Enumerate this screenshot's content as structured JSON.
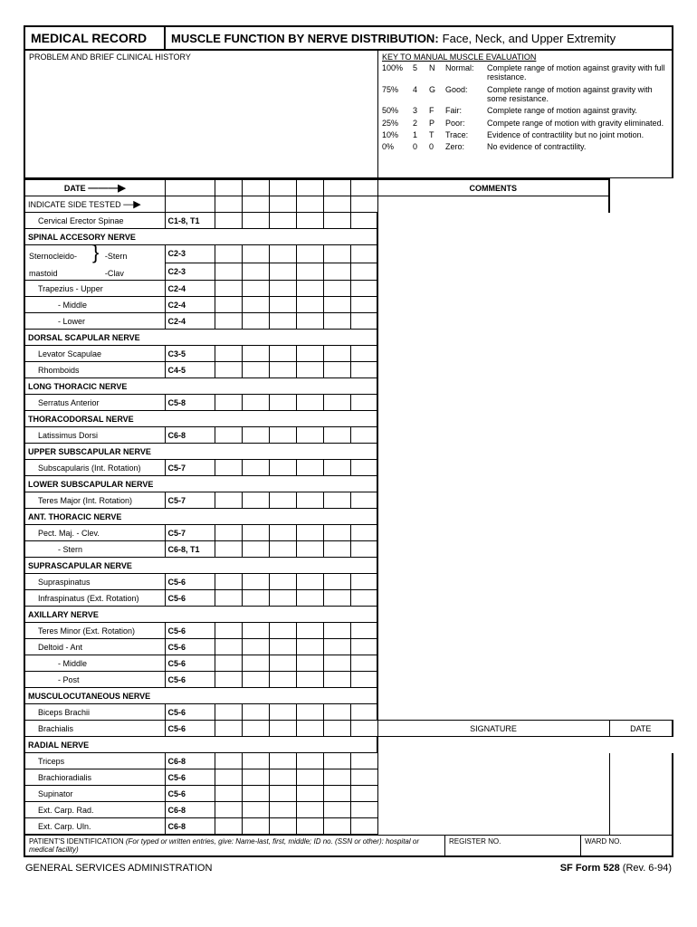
{
  "header": {
    "left": "MEDICAL RECORD",
    "right_bold": "MUSCLE FUNCTION BY NERVE DISTRIBUTION:",
    "right_rest": " Face, Neck, and Upper Extremity"
  },
  "problem_label": "PROBLEM AND BRIEF CLINICAL HISTORY",
  "key": {
    "title": "KEY TO MANUAL MUSCLE EVALUATION",
    "rows": [
      {
        "p": "100%",
        "n": "5",
        "l": "N",
        "g": "Normal:",
        "d": "Complete range of motion against gravity with full resistance."
      },
      {
        "p": "75%",
        "n": "4",
        "l": "G",
        "g": "Good:",
        "d": "Complete range of motion against gravity with some resistance."
      },
      {
        "p": "50%",
        "n": "3",
        "l": "F",
        "g": "Fair:",
        "d": "Complete range of motion against gravity."
      },
      {
        "p": "25%",
        "n": "2",
        "l": "P",
        "g": "Poor:",
        "d": "Compete range of motion with gravity eliminated."
      },
      {
        "p": "10%",
        "n": "1",
        "l": "T",
        "g": "Trace:",
        "d": "Evidence of contractility but no joint motion."
      },
      {
        "p": "0%",
        "n": "0",
        "l": "0",
        "g": "Zero:",
        "d": "No evidence of contractility."
      }
    ]
  },
  "date_label": "DATE",
  "comments_label": "COMMENTS",
  "indicate_label": "INDICATE SIDE TESTED",
  "signature_label": "SIGNATURE",
  "sig_date_label": "DATE",
  "rows": [
    {
      "type": "muscle",
      "name": "Cervical Erector Spinae",
      "seg": "C1-8, T1",
      "indent": 1
    },
    {
      "type": "nerve",
      "name": "SPINAL ACCESORY NERVE"
    },
    {
      "type": "sterno_top",
      "name": "Sternocleido-",
      "sub": "-Stern",
      "seg": "C2-3"
    },
    {
      "type": "sterno_bot",
      "name": "mastoid",
      "sub": "-Clav",
      "seg": "C2-3"
    },
    {
      "type": "muscle",
      "name": "Trapezius - Upper",
      "seg": "C2-4",
      "indent": 1
    },
    {
      "type": "muscle",
      "name": "- Middle",
      "seg": "C2-4",
      "indent": 2
    },
    {
      "type": "muscle",
      "name": "- Lower",
      "seg": "C2-4",
      "indent": 2
    },
    {
      "type": "nerve",
      "name": "DORSAL SCAPULAR NERVE"
    },
    {
      "type": "muscle",
      "name": "Levator Scapulae",
      "seg": "C3-5",
      "indent": 1
    },
    {
      "type": "muscle",
      "name": "Rhomboids",
      "seg": "C4-5",
      "indent": 1
    },
    {
      "type": "nerve",
      "name": "LONG THORACIC NERVE"
    },
    {
      "type": "muscle",
      "name": "Serratus Anterior",
      "seg": "C5-8",
      "indent": 1
    },
    {
      "type": "nerve",
      "name": "THORACODORSAL NERVE"
    },
    {
      "type": "muscle",
      "name": "Latissimus Dorsi",
      "seg": "C6-8",
      "indent": 1
    },
    {
      "type": "nerve",
      "name": "UPPER SUBSCAPULAR NERVE"
    },
    {
      "type": "muscle",
      "name": "Subscapularis (Int. Rotation)",
      "seg": "C5-7",
      "indent": 1
    },
    {
      "type": "nerve",
      "name": "LOWER SUBSCAPULAR NERVE"
    },
    {
      "type": "muscle",
      "name": "Teres Major (Int. Rotation)",
      "seg": "C5-7",
      "indent": 1
    },
    {
      "type": "nerve",
      "name": "ANT. THORACIC NERVE"
    },
    {
      "type": "muscle",
      "name": "Pect. Maj. - Clev.",
      "seg": "C5-7",
      "indent": 1
    },
    {
      "type": "muscle",
      "name": "- Stern",
      "seg": "C6-8, T1",
      "indent": 2
    },
    {
      "type": "nerve",
      "name": "SUPRASCAPULAR NERVE"
    },
    {
      "type": "muscle",
      "name": "Supraspinatus",
      "seg": "C5-6",
      "indent": 1
    },
    {
      "type": "muscle",
      "name": "Infraspinatus (Ext. Rotation)",
      "seg": "C5-6",
      "indent": 1
    },
    {
      "type": "nerve",
      "name": "AXILLARY NERVE"
    },
    {
      "type": "muscle",
      "name": "Teres Minor (Ext. Rotation)",
      "seg": "C5-6",
      "indent": 1
    },
    {
      "type": "muscle",
      "name": "Deltoid - Ant",
      "seg": "C5-6",
      "indent": 1
    },
    {
      "type": "muscle",
      "name": "- Middle",
      "seg": "C5-6",
      "indent": 2
    },
    {
      "type": "muscle",
      "name": "- Post",
      "seg": "C5-6",
      "indent": 2
    },
    {
      "type": "nerve",
      "name": "MUSCULOCUTANEOUS NERVE"
    },
    {
      "type": "muscle",
      "name": "Biceps Brachii",
      "seg": "C5-6",
      "indent": 1
    },
    {
      "type": "muscle_sig",
      "name": "Brachialis",
      "seg": "C5-6",
      "indent": 1
    },
    {
      "type": "nerve",
      "name": "RADIAL NERVE"
    },
    {
      "type": "muscle",
      "name": "Triceps",
      "seg": "C6-8",
      "indent": 1
    },
    {
      "type": "muscle",
      "name": "Brachioradialis",
      "seg": "C5-6",
      "indent": 1
    },
    {
      "type": "muscle",
      "name": "Supinator",
      "seg": "C5-6",
      "indent": 1
    },
    {
      "type": "muscle",
      "name": "Ext. Carp. Rad.",
      "seg": "C6-8",
      "indent": 1
    },
    {
      "type": "muscle",
      "name": "Ext. Carp. Uln.",
      "seg": "C6-8",
      "indent": 1
    }
  ],
  "footer": {
    "pid_label": "PATIENT'S IDENTIFICATION",
    "pid_note": " (For typed or written entries, give: Name-last, first, middle; ID no. (SSN or other): hospital or medical facility)",
    "reg": "REGISTER NO.",
    "ward": "WARD NO."
  },
  "bottom": {
    "left": "GENERAL SERVICES ADMINISTRATION",
    "right_bold": "SF Form 528",
    "right_rest": " (Rev. 6-94)"
  },
  "colors": {
    "line": "#000000",
    "bg": "#ffffff"
  }
}
